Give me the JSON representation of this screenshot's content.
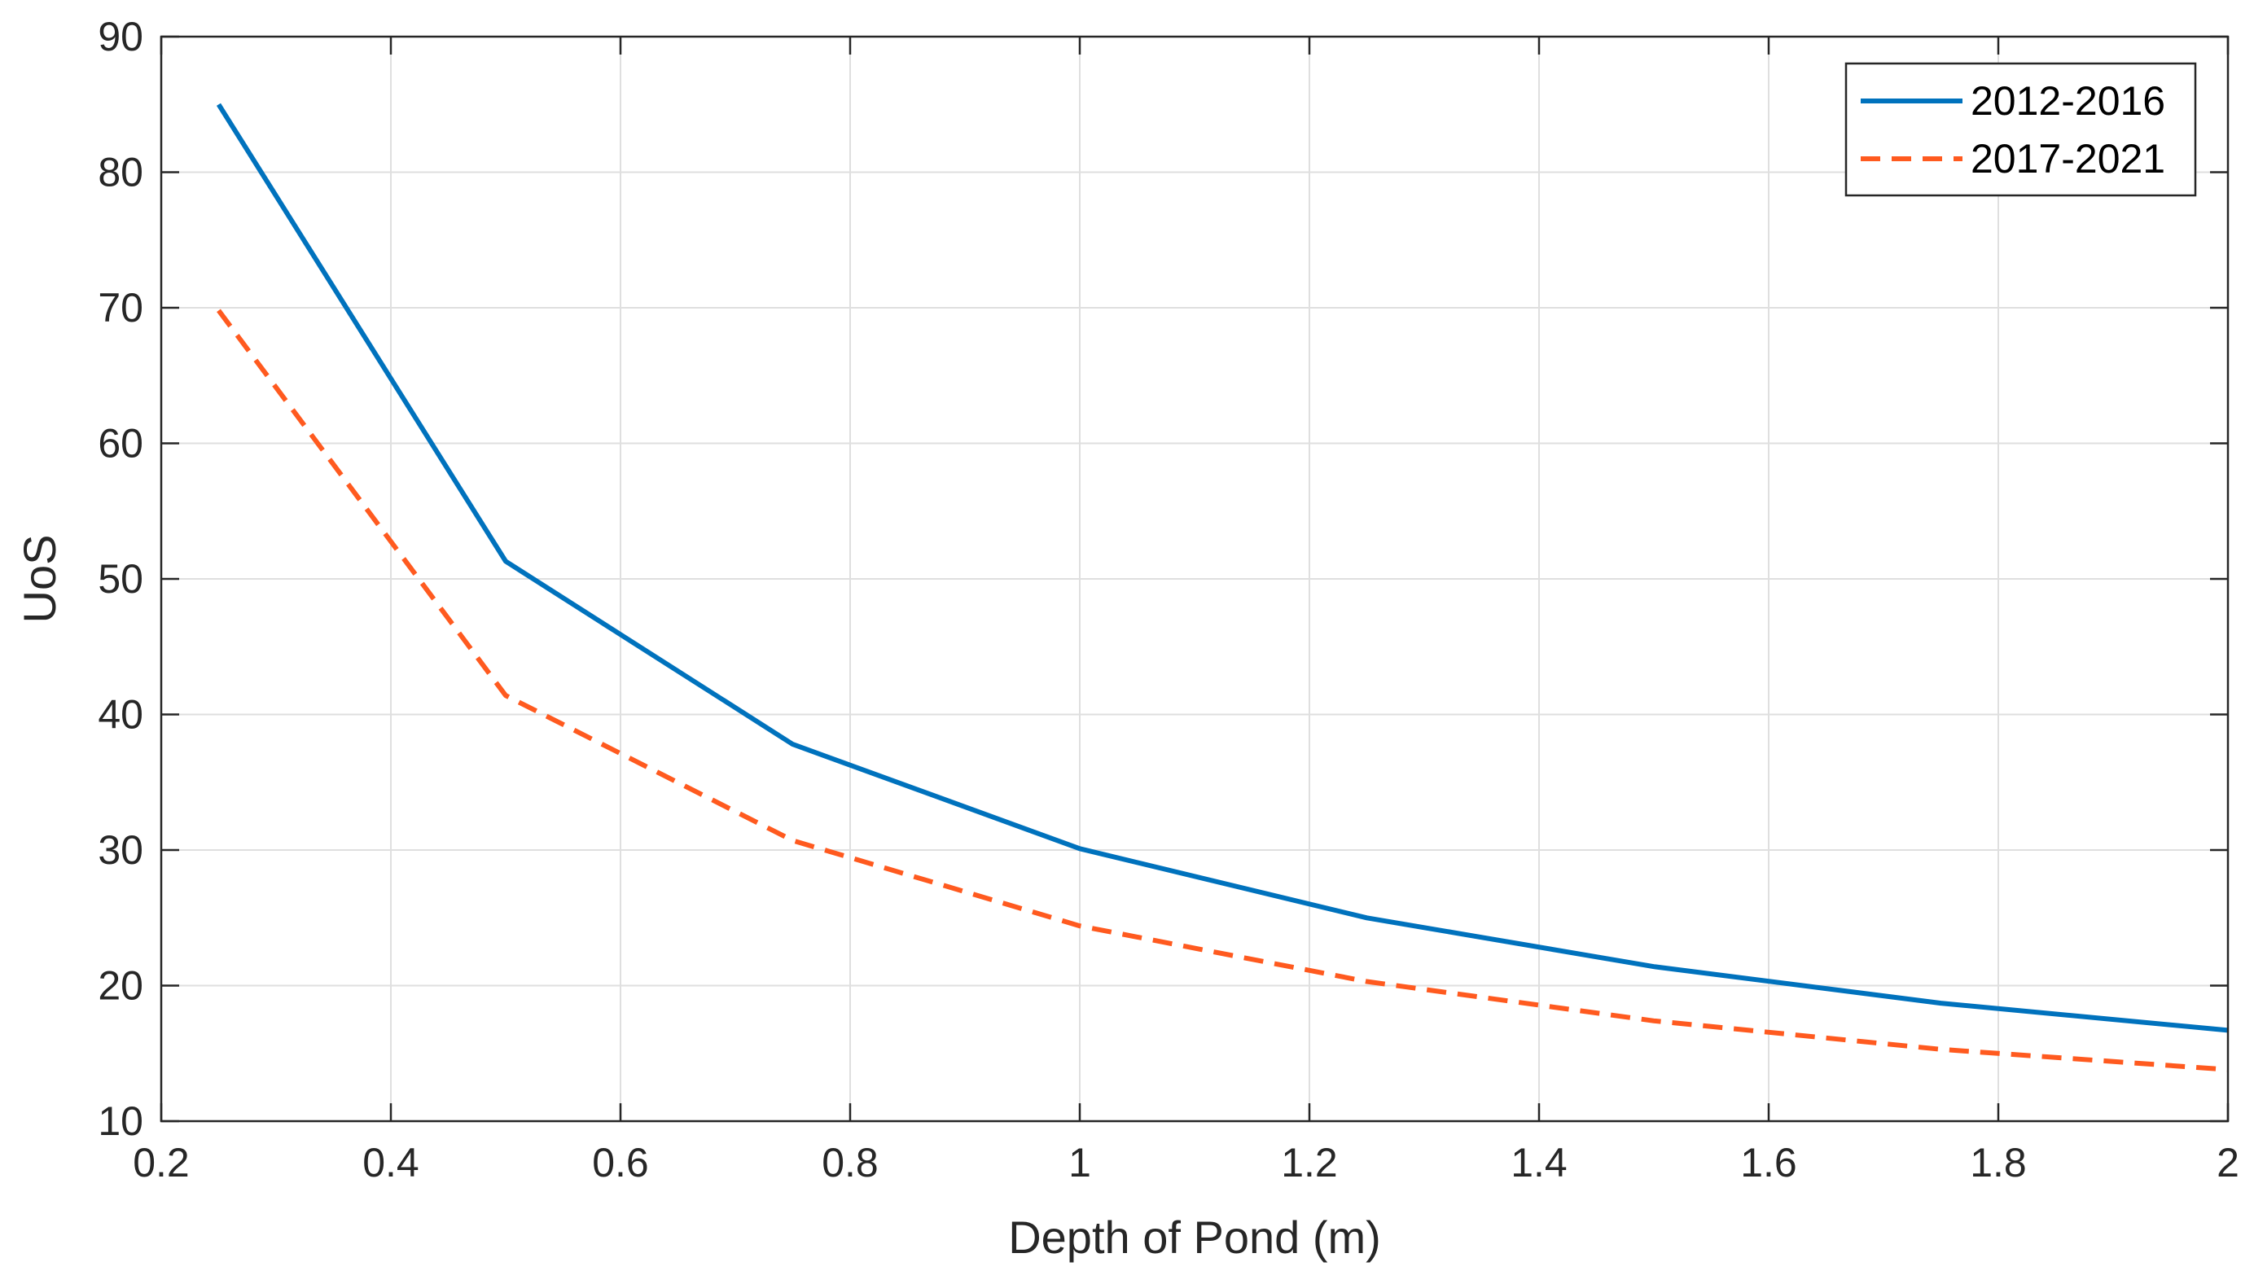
{
  "chart_data": {
    "type": "line",
    "title": "",
    "xlabel": "Depth of Pond (m)",
    "ylabel": "UoS",
    "xlim": [
      0.2,
      2
    ],
    "ylim": [
      10,
      90
    ],
    "xticks": [
      0.2,
      0.4,
      0.6,
      0.8,
      1,
      1.2,
      1.4,
      1.6,
      1.8,
      2
    ],
    "xtick_labels": [
      "0.2",
      "0.4",
      "0.6",
      "0.8",
      "1",
      "1.2",
      "1.4",
      "1.6",
      "1.8",
      "2"
    ],
    "yticks": [
      10,
      20,
      30,
      40,
      50,
      60,
      70,
      80,
      90
    ],
    "ytick_labels": [
      "10",
      "20",
      "30",
      "40",
      "50",
      "60",
      "70",
      "80",
      "90"
    ],
    "grid": true,
    "legend_position": "top-right",
    "x": [
      0.25,
      0.5,
      0.75,
      1.0,
      1.25,
      1.5,
      1.75,
      2.0
    ],
    "series": [
      {
        "name": "2012-2016",
        "color": "#0072BD",
        "line_style": "solid",
        "values": [
          85.0,
          51.3,
          37.8,
          30.1,
          25.0,
          21.4,
          18.7,
          16.7
        ]
      },
      {
        "name": "2017-2021",
        "color": "#FF5A1F",
        "line_style": "dashed",
        "values": [
          69.8,
          41.4,
          30.7,
          24.4,
          20.3,
          17.4,
          15.3,
          13.8
        ]
      }
    ]
  }
}
